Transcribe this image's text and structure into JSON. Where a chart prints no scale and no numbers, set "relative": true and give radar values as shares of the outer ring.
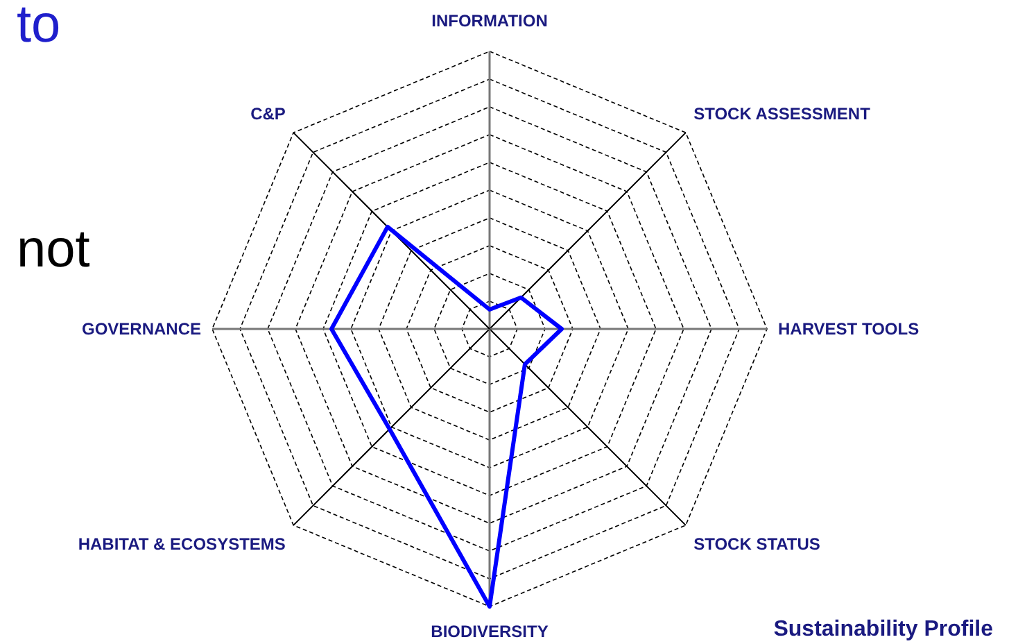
{
  "chart_data": {
    "type": "radar",
    "relative": true,
    "title": "Sustainability Profile",
    "categories": [
      "INFORMATION",
      "STOCK ASSESSMENT",
      "HARVEST TOOLS",
      "STOCK STATUS",
      "BIODIVERSITY",
      "HABITAT & ECOSYSTEMS",
      "GOVERNANCE",
      "C&P"
    ],
    "series": [
      {
        "color": "#0000ff",
        "values": [
          0.07,
          0.16,
          0.26,
          0.18,
          1,
          0.51,
          0.57,
          0.52
        ]
      }
    ],
    "grid": true,
    "marker": "none",
    "line_style": "solid",
    "annotations": [
      "to",
      "not"
    ]
  }
}
